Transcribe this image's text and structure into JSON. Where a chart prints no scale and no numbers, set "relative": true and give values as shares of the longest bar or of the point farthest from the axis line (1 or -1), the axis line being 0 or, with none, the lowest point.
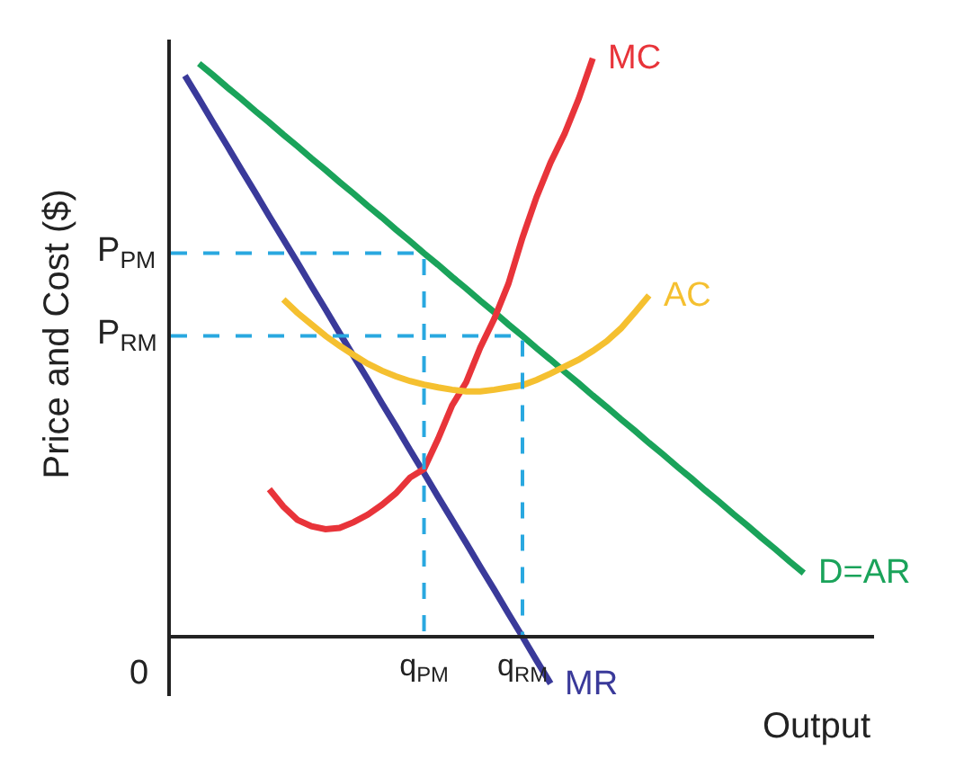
{
  "chart_data": {
    "type": "line",
    "relative": true,
    "xlabel": "Output",
    "ylabel": "Price and Cost ($)",
    "legend": false,
    "marker": "none",
    "categories": [
      null,
      null,
      null,
      null,
      null,
      null,
      null,
      null,
      null,
      null,
      null,
      null,
      null,
      null,
      null,
      null,
      null,
      null,
      "q$_{PM}$",
      null,
      null,
      null,
      null,
      null,
      null,
      "q$_{RM}$",
      null,
      null,
      null,
      null,
      null,
      null,
      null,
      null,
      null,
      null,
      null,
      null,
      null,
      null,
      null,
      null,
      null,
      null,
      null,
      null,
      null,
      null,
      null,
      null,
      null
    ],
    "annotations": [
      "0"
    ],
    "ref_lines": [
      {
        "axis": "y",
        "value": 0.663,
        "label": "P$_{PM}$",
        "color": "#29a8e0",
        "line_style": "dashed"
      },
      {
        "axis": "y",
        "value": 0.52,
        "label": "P$_{RM}$",
        "color": "#29a8e0",
        "line_style": "dashed"
      }
    ],
    "series": [
      {
        "name": "MR",
        "color": "#3a3a9a",
        "values": [
          null,
          0.97,
          0.93,
          0.889,
          0.849,
          0.808,
          0.768,
          0.727,
          0.687,
          0.647,
          0.606,
          0.566,
          0.525,
          0.485,
          0.445,
          0.404,
          0.364,
          0.323,
          0.283,
          0.242,
          0.202,
          0.162,
          0.121,
          0.081,
          0.04,
          0.0,
          -0.041,
          -0.081,
          null,
          null,
          null,
          null,
          null,
          null,
          null,
          null,
          null,
          null,
          null,
          null,
          null,
          null,
          null,
          null,
          null,
          null,
          null,
          null,
          null,
          null,
          null
        ]
      },
      {
        "name": "D=AR",
        "color": "#1aa35a",
        "values": [
          null,
          null,
          0.991,
          0.971,
          0.95,
          0.93,
          0.909,
          0.889,
          0.868,
          0.848,
          0.827,
          0.807,
          0.786,
          0.766,
          0.745,
          0.725,
          0.704,
          0.684,
          0.663,
          0.643,
          0.622,
          0.602,
          0.581,
          0.561,
          0.54,
          0.52,
          0.499,
          0.479,
          0.458,
          0.438,
          0.417,
          0.397,
          0.376,
          0.356,
          0.335,
          0.315,
          0.294,
          0.274,
          0.253,
          0.233,
          0.212,
          0.192,
          0.171,
          0.151,
          0.13,
          0.11,
          null,
          null,
          null,
          null,
          null
        ]
      },
      {
        "name": "MC",
        "color": "#e8343a",
        "values": [
          null,
          null,
          null,
          null,
          null,
          null,
          null,
          0.255,
          0.225,
          0.202,
          0.191,
          0.186,
          0.188,
          0.198,
          0.211,
          0.228,
          0.248,
          0.275,
          0.29,
          0.342,
          0.4,
          0.44,
          0.5,
          0.55,
          0.61,
          0.69,
          0.76,
          0.82,
          0.87,
          0.93,
          1.0,
          null,
          null,
          null,
          null,
          null,
          null,
          null,
          null,
          null,
          null,
          null,
          null,
          null,
          null,
          null,
          null,
          null,
          null,
          null,
          null
        ]
      },
      {
        "name": "AC",
        "color": "#f5c030",
        "values": [
          null,
          null,
          null,
          null,
          null,
          null,
          null,
          null,
          0.583,
          0.56,
          0.54,
          0.52,
          0.503,
          0.487,
          0.472,
          0.46,
          0.45,
          0.442,
          0.436,
          0.431,
          0.427,
          0.424,
          0.424,
          0.427,
          0.431,
          0.435,
          0.444,
          0.455,
          0.467,
          0.479,
          0.494,
          0.511,
          0.533,
          0.561,
          0.59,
          null,
          null,
          null,
          null,
          null,
          null,
          null,
          null,
          null,
          null,
          null,
          null,
          null,
          null,
          null,
          null
        ]
      }
    ]
  }
}
